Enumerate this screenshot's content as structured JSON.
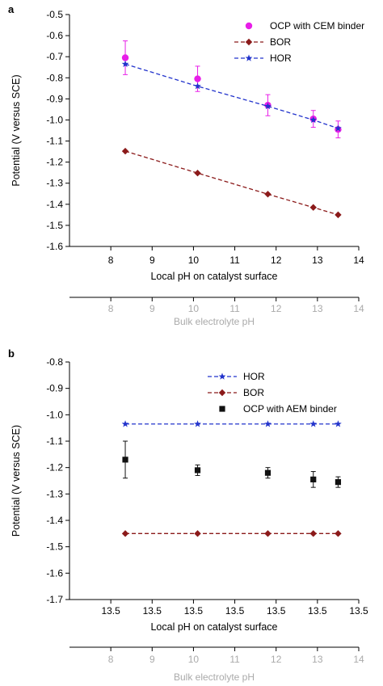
{
  "chart_data": [
    {
      "panel": "a",
      "type": "line",
      "xlabel": "Local pH on catalyst surface",
      "ylabel": "Potential (V versus SCE)",
      "xlim": [
        7,
        14
      ],
      "ylim": [
        -1.6,
        -0.5
      ],
      "xticks": [
        8,
        9,
        10,
        11,
        12,
        13,
        14
      ],
      "xtick_labels": [
        "8",
        "9",
        "10",
        "11",
        "12",
        "13",
        "14"
      ],
      "yticks": [
        -0.5,
        -0.6,
        -0.7,
        -0.8,
        -0.9,
        -1.0,
        -1.1,
        -1.2,
        -1.3,
        -1.4,
        -1.5,
        -1.6
      ],
      "ytick_labels": [
        "-0.5",
        "-0.6",
        "-0.7",
        "-0.8",
        "-0.9",
        "-1.0",
        "-1.1",
        "-1.2",
        "-1.3",
        "-1.4",
        "-1.5",
        "-1.6"
      ],
      "secondary_xaxis": {
        "label": "Bulk electrolyte pH",
        "ticks": [
          8,
          9,
          10,
          11,
          12,
          13,
          14
        ],
        "tick_labels": [
          "8",
          "9",
          "10",
          "11",
          "12",
          "13",
          "14"
        ]
      },
      "legend_position": "top-right",
      "grid": false,
      "series": [
        {
          "name": "OCP with CEM binder",
          "marker": "circle",
          "color": "#e81ee8",
          "line": "none",
          "x": [
            8.35,
            10.1,
            11.8,
            12.9,
            13.5
          ],
          "y": [
            -0.705,
            -0.805,
            -0.93,
            -0.995,
            -1.045
          ],
          "yerr": [
            0.08,
            0.06,
            0.05,
            0.04,
            0.04
          ]
        },
        {
          "name": "BOR",
          "marker": "diamond",
          "color": "#8b1a1a",
          "line": "dashed",
          "x": [
            8.35,
            10.1,
            11.8,
            12.9,
            13.5
          ],
          "y": [
            -1.148,
            -1.252,
            -1.352,
            -1.415,
            -1.45
          ]
        },
        {
          "name": "HOR",
          "marker": "star",
          "color": "#2233cc",
          "line": "dashed",
          "x": [
            8.35,
            10.1,
            11.8,
            12.9,
            13.5
          ],
          "y": [
            -0.735,
            -0.84,
            -0.935,
            -1.0,
            -1.04
          ]
        }
      ]
    },
    {
      "panel": "b",
      "type": "line",
      "xlabel": "Local pH on catalyst surface",
      "ylabel": "Potential (V versus SCE)",
      "ylim": [
        -1.7,
        -0.8
      ],
      "xtick_labels": [
        "13.5",
        "13.5",
        "13.5",
        "13.5",
        "13.5",
        "13.5",
        "13.5"
      ],
      "yticks": [
        -0.8,
        -0.9,
        -1.0,
        -1.1,
        -1.2,
        -1.3,
        -1.4,
        -1.5,
        -1.6,
        -1.7
      ],
      "ytick_labels": [
        "-0.8",
        "-0.9",
        "-1.0",
        "-1.1",
        "-1.2",
        "-1.3",
        "-1.4",
        "-1.5",
        "-1.6",
        "-1.7"
      ],
      "secondary_xaxis": {
        "label": "Bulk electrolyte pH",
        "ticks": [
          8,
          9,
          10,
          11,
          12,
          13,
          14
        ],
        "tick_labels": [
          "8",
          "9",
          "10",
          "11",
          "12",
          "13",
          "14"
        ]
      },
      "legend_position": "top-right",
      "grid": false,
      "bulk_xlim": [
        7,
        14
      ],
      "series": [
        {
          "name": "HOR",
          "marker": "star",
          "color": "#2233cc",
          "line": "dashed",
          "x": [
            8.35,
            10.1,
            11.8,
            12.9,
            13.5
          ],
          "y": [
            -1.035,
            -1.035,
            -1.035,
            -1.035,
            -1.035
          ]
        },
        {
          "name": "BOR",
          "marker": "diamond",
          "color": "#8b1a1a",
          "line": "dashed",
          "x": [
            8.35,
            10.1,
            11.8,
            12.9,
            13.5
          ],
          "y": [
            -1.45,
            -1.45,
            -1.45,
            -1.45,
            -1.45
          ]
        },
        {
          "name": "OCP with AEM binder",
          "marker": "square",
          "color": "#111111",
          "line": "none",
          "x": [
            8.35,
            10.1,
            11.8,
            12.9,
            13.5
          ],
          "y": [
            -1.17,
            -1.21,
            -1.22,
            -1.245,
            -1.255
          ],
          "yerr": [
            0.07,
            0.02,
            0.02,
            0.03,
            0.02
          ]
        }
      ]
    }
  ]
}
